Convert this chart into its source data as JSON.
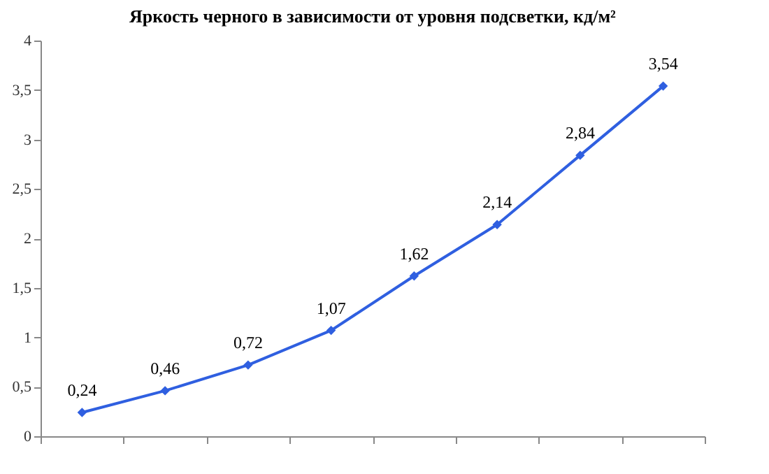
{
  "chart_data": {
    "type": "line",
    "title": "Яркость черного в зависимости от уровня подсветки, кд/м²",
    "categories": [
      null,
      null,
      null,
      null,
      null,
      null,
      null,
      null
    ],
    "series": [
      {
        "color": "#2f5fe0",
        "values": [
          0.24,
          0.46,
          0.72,
          1.07,
          1.62,
          2.14,
          2.84,
          3.54
        ],
        "value_labels": [
          "0,24",
          "0,46",
          "0,72",
          "1,07",
          "1,62",
          "2,14",
          "2,84",
          "3,54"
        ]
      }
    ],
    "ylim": [
      0,
      4
    ],
    "yticks": [
      0,
      {
        "value": 0.5,
        "label": "0,5"
      },
      1,
      {
        "value": 1.5,
        "label": "1,5"
      },
      2,
      {
        "value": 2.5,
        "label": "2,5"
      },
      3,
      {
        "value": 3.5,
        "label": "3,5"
      },
      4
    ],
    "marker": "diamond",
    "line_style": "solid",
    "grid": false
  }
}
